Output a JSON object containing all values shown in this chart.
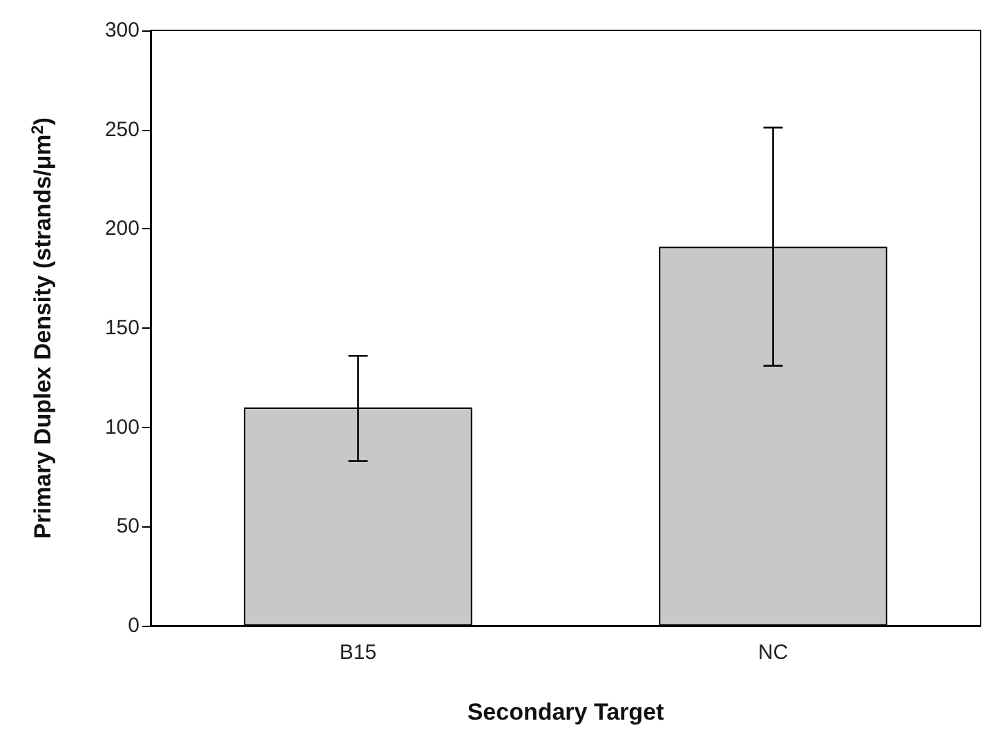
{
  "chart_data": {
    "type": "bar",
    "xlabel": "Secondary Target",
    "ylabel": "Primary Duplex Density (strands/μm$^{2}$)",
    "categories": [
      "B15",
      "NC"
    ],
    "series": [
      {
        "color": "#c8c8c8",
        "values": [
          110,
          191
        ],
        "errors": [
          [
            83,
            136
          ],
          [
            131,
            251
          ]
        ]
      }
    ],
    "ylim": [
      0,
      300
    ],
    "yticks": [
      0,
      50,
      100,
      150,
      200,
      250,
      300
    ],
    "grid": false
  }
}
